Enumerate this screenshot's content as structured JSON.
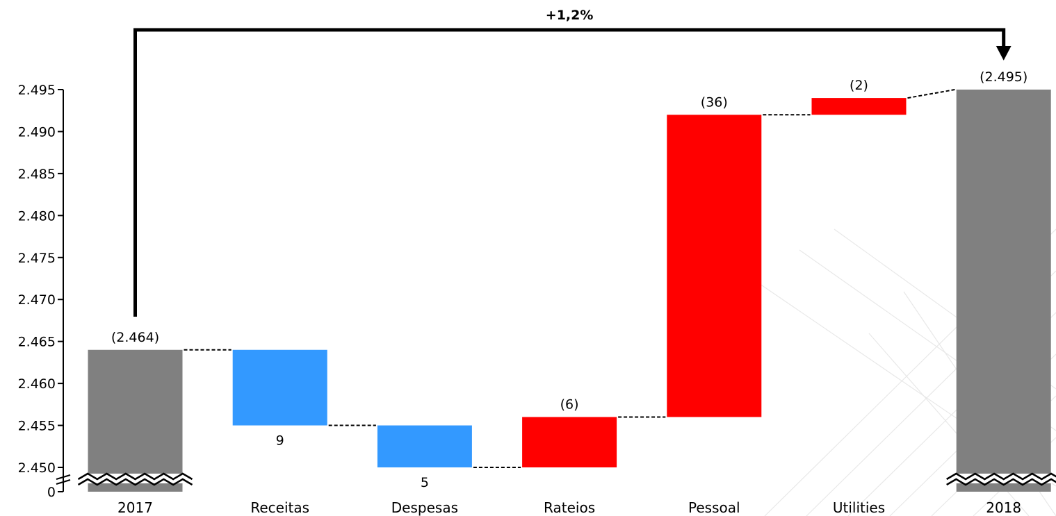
{
  "chart_data": {
    "type": "waterfall",
    "title": "",
    "xlabel": "",
    "ylabel": "",
    "ylim": [
      2450,
      2495
    ],
    "axis_break": true,
    "y_ticks": [
      "0",
      "2.450",
      "2.455",
      "2.460",
      "2.465",
      "2.470",
      "2.475",
      "2.480",
      "2.485",
      "2.490",
      "2.495"
    ],
    "categories": [
      "2017",
      "Receitas",
      "Despesas",
      "Rateios",
      "Pessoal",
      "Utilities",
      "2018"
    ],
    "bars": [
      {
        "category": "2017",
        "kind": "total",
        "start": 0,
        "end": 2464,
        "label": "(2.464)",
        "label_pos": "above",
        "color": "#808080"
      },
      {
        "category": "Receitas",
        "kind": "decrease",
        "start": 2464,
        "end": 2455,
        "label": "9",
        "label_pos": "below",
        "color": "#3399ff"
      },
      {
        "category": "Despesas",
        "kind": "decrease",
        "start": 2455,
        "end": 2450,
        "label": "5",
        "label_pos": "below",
        "color": "#3399ff"
      },
      {
        "category": "Rateios",
        "kind": "increase",
        "start": 2450,
        "end": 2456,
        "label": "(6)",
        "label_pos": "above",
        "color": "#ff0000"
      },
      {
        "category": "Pessoal",
        "kind": "increase",
        "start": 2456,
        "end": 2492,
        "label": "(36)",
        "label_pos": "above",
        "color": "#ff0000"
      },
      {
        "category": "Utilities",
        "kind": "increase",
        "start": 2492,
        "end": 2494,
        "label": "(2)",
        "label_pos": "above",
        "color": "#ff0000"
      },
      {
        "category": "2018",
        "kind": "total",
        "start": 0,
        "end": 2495,
        "label": "(2.495)",
        "label_pos": "above",
        "color": "#808080"
      }
    ],
    "change_annotation": {
      "from": "2017",
      "to": "2018",
      "label": "+1,2%"
    }
  }
}
